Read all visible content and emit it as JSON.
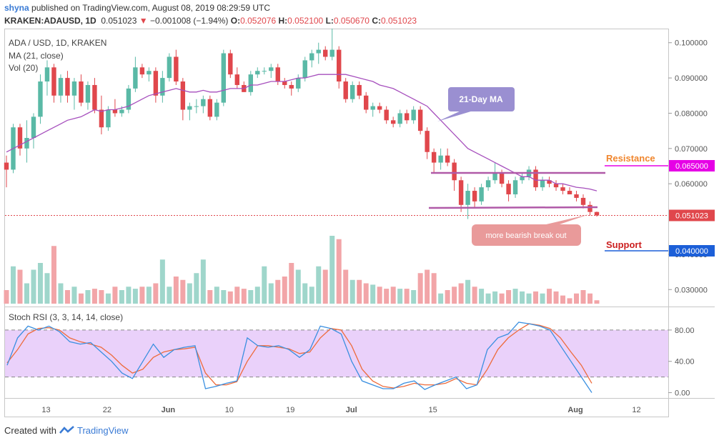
{
  "header": {
    "user": "shyna",
    "published_text": "published on TradingView.com, August 08, 2019 08:29:59 UTC",
    "symbol": "KRAKEN:ADAUSD, 1D",
    "last": "0.051023",
    "change": "−0.001008 (−1.94%)",
    "o_label": "O:",
    "o": "0.052076",
    "h_label": "H:",
    "h": "0.052100",
    "l_label": "L:",
    "l": "0.050670",
    "c_label": "C:",
    "c": "0.051023"
  },
  "legend": {
    "pair": "ADA / USD, 1D, KRAKEN",
    "ma": "MA (21, close)",
    "vol": "Vol (20)",
    "stoch": "Stoch RSI (3, 3, 14, 14, close)"
  },
  "annotations": {
    "ma_callout": "21-Day MA",
    "breakout": "more bearish break out",
    "resistance": "Resistance",
    "support": "Support"
  },
  "footer": {
    "created_with": "Created with",
    "brand": "TradingView"
  },
  "colors": {
    "up": "#5ab9a6",
    "down": "#e0474c",
    "vol_up": "#9fd6cb",
    "vol_down": "#f2a5a8",
    "ma": "#a64fbd",
    "trend": "#b05aa8",
    "resistance": "#e600e6",
    "support": "#1c5fd8",
    "callout_ma": "#9a8fd1",
    "callout_break": "#e99a9a",
    "stoch_k": "#3a8fe0",
    "stoch_d": "#ee6b3b",
    "rsi_band": "#ead1fa",
    "resistance_text": "#f0862e",
    "support_text": "#cc2020"
  },
  "chart_data": [
    {
      "type": "candlestick",
      "title": "ADA / USD, 1D, KRAKEN",
      "x_ticks": [
        "13",
        "22",
        "Jun",
        "10",
        "19",
        "Jul",
        "15",
        "Aug",
        "12"
      ],
      "y_ticks": [
        "0.100000",
        "0.090000",
        "0.080000",
        "0.070000",
        "0.060000",
        "0.040000",
        "0.030000"
      ],
      "ylim": [
        0.026,
        0.104
      ],
      "price_labels": {
        "resistance": "0.065000",
        "current": "0.051023",
        "support": "0.040000"
      },
      "levels": {
        "resistance": 0.065,
        "support": 0.04,
        "current": 0.051023
      },
      "ohlc": [
        [
          0.066,
          0.068,
          0.059,
          0.064
        ],
        [
          0.064,
          0.077,
          0.063,
          0.076
        ],
        [
          0.076,
          0.077,
          0.068,
          0.07
        ],
        [
          0.07,
          0.078,
          0.066,
          0.073
        ],
        [
          0.073,
          0.08,
          0.07,
          0.079
        ],
        [
          0.079,
          0.091,
          0.077,
          0.089
        ],
        [
          0.089,
          0.095,
          0.085,
          0.093
        ],
        [
          0.093,
          0.094,
          0.083,
          0.085
        ],
        [
          0.085,
          0.091,
          0.083,
          0.09
        ],
        [
          0.09,
          0.092,
          0.083,
          0.085
        ],
        [
          0.085,
          0.09,
          0.081,
          0.089
        ],
        [
          0.089,
          0.091,
          0.082,
          0.083
        ],
        [
          0.083,
          0.089,
          0.081,
          0.088
        ],
        [
          0.088,
          0.09,
          0.08,
          0.081
        ],
        [
          0.081,
          0.085,
          0.074,
          0.076
        ],
        [
          0.076,
          0.082,
          0.075,
          0.081
        ],
        [
          0.081,
          0.084,
          0.079,
          0.08
        ],
        [
          0.08,
          0.082,
          0.079,
          0.081
        ],
        [
          0.081,
          0.088,
          0.08,
          0.087
        ],
        [
          0.087,
          0.096,
          0.086,
          0.093
        ],
        [
          0.093,
          0.094,
          0.09,
          0.091
        ],
        [
          0.091,
          0.093,
          0.089,
          0.092
        ],
        [
          0.092,
          0.093,
          0.083,
          0.085
        ],
        [
          0.085,
          0.092,
          0.083,
          0.09
        ],
        [
          0.09,
          0.097,
          0.089,
          0.096
        ],
        [
          0.096,
          0.098,
          0.088,
          0.089
        ],
        [
          0.089,
          0.09,
          0.078,
          0.081
        ],
        [
          0.081,
          0.083,
          0.078,
          0.082
        ],
        [
          0.082,
          0.084,
          0.08,
          0.082
        ],
        [
          0.082,
          0.085,
          0.08,
          0.084
        ],
        [
          0.084,
          0.085,
          0.078,
          0.079
        ],
        [
          0.079,
          0.084,
          0.078,
          0.083
        ],
        [
          0.083,
          0.098,
          0.082,
          0.097
        ],
        [
          0.097,
          0.098,
          0.09,
          0.091
        ],
        [
          0.091,
          0.093,
          0.087,
          0.088
        ],
        [
          0.088,
          0.089,
          0.086,
          0.086
        ],
        [
          0.086,
          0.092,
          0.085,
          0.091
        ],
        [
          0.091,
          0.093,
          0.09,
          0.092
        ],
        [
          0.092,
          0.093,
          0.091,
          0.092
        ],
        [
          0.092,
          0.094,
          0.09,
          0.093
        ],
        [
          0.093,
          0.094,
          0.088,
          0.089
        ],
        [
          0.089,
          0.09,
          0.087,
          0.088
        ],
        [
          0.088,
          0.089,
          0.085,
          0.087
        ],
        [
          0.087,
          0.091,
          0.086,
          0.09
        ],
        [
          0.09,
          0.096,
          0.089,
          0.095
        ],
        [
          0.095,
          0.098,
          0.093,
          0.097
        ],
        [
          0.097,
          0.1,
          0.094,
          0.098
        ],
        [
          0.098,
          0.099,
          0.095,
          0.096
        ],
        [
          0.096,
          0.104,
          0.095,
          0.098
        ],
        [
          0.098,
          0.099,
          0.087,
          0.089
        ],
        [
          0.089,
          0.09,
          0.083,
          0.084
        ],
        [
          0.084,
          0.089,
          0.083,
          0.088
        ],
        [
          0.088,
          0.089,
          0.084,
          0.085
        ],
        [
          0.085,
          0.086,
          0.08,
          0.081
        ],
        [
          0.081,
          0.083,
          0.079,
          0.082
        ],
        [
          0.082,
          0.083,
          0.08,
          0.081
        ],
        [
          0.081,
          0.082,
          0.077,
          0.078
        ],
        [
          0.078,
          0.079,
          0.076,
          0.077
        ],
        [
          0.077,
          0.081,
          0.076,
          0.08
        ],
        [
          0.08,
          0.081,
          0.077,
          0.078
        ],
        [
          0.078,
          0.082,
          0.077,
          0.081
        ],
        [
          0.081,
          0.082,
          0.074,
          0.075
        ],
        [
          0.075,
          0.076,
          0.067,
          0.069
        ],
        [
          0.069,
          0.07,
          0.063,
          0.066
        ],
        [
          0.066,
          0.07,
          0.064,
          0.068
        ],
        [
          0.068,
          0.07,
          0.065,
          0.066
        ],
        [
          0.066,
          0.067,
          0.058,
          0.061
        ],
        [
          0.061,
          0.062,
          0.052,
          0.054
        ],
        [
          0.054,
          0.06,
          0.05,
          0.058
        ],
        [
          0.058,
          0.059,
          0.053,
          0.055
        ],
        [
          0.055,
          0.06,
          0.054,
          0.059
        ],
        [
          0.059,
          0.062,
          0.058,
          0.061
        ],
        [
          0.061,
          0.066,
          0.06,
          0.063
        ],
        [
          0.063,
          0.064,
          0.059,
          0.06
        ],
        [
          0.06,
          0.061,
          0.055,
          0.057
        ],
        [
          0.057,
          0.062,
          0.056,
          0.061
        ],
        [
          0.061,
          0.063,
          0.06,
          0.062
        ],
        [
          0.062,
          0.065,
          0.061,
          0.064
        ],
        [
          0.064,
          0.065,
          0.058,
          0.059
        ],
        [
          0.059,
          0.062,
          0.058,
          0.061
        ],
        [
          0.061,
          0.062,
          0.059,
          0.06
        ],
        [
          0.06,
          0.061,
          0.058,
          0.059
        ],
        [
          0.059,
          0.06,
          0.057,
          0.058
        ],
        [
          0.058,
          0.059,
          0.057,
          0.057
        ],
        [
          0.057,
          0.058,
          0.055,
          0.056
        ],
        [
          0.056,
          0.057,
          0.053,
          0.054
        ],
        [
          0.054,
          0.055,
          0.051,
          0.052
        ],
        [
          0.052,
          0.0521,
          0.0507,
          0.051023
        ]
      ],
      "ma21": [
        0.069,
        0.07,
        0.071,
        0.072,
        0.073,
        0.074,
        0.075,
        0.076,
        0.077,
        0.078,
        0.0785,
        0.079,
        0.08,
        0.081,
        0.0805,
        0.081,
        0.081,
        0.0815,
        0.082,
        0.083,
        0.084,
        0.085,
        0.0855,
        0.086,
        0.0865,
        0.087,
        0.0865,
        0.086,
        0.086,
        0.0865,
        0.086,
        0.086,
        0.0865,
        0.087,
        0.087,
        0.087,
        0.088,
        0.088,
        0.0885,
        0.089,
        0.089,
        0.089,
        0.0895,
        0.09,
        0.09,
        0.0905,
        0.091,
        0.091,
        0.091,
        0.091,
        0.091,
        0.0905,
        0.09,
        0.0895,
        0.089,
        0.088,
        0.0875,
        0.087,
        0.086,
        0.085,
        0.084,
        0.083,
        0.082,
        0.08,
        0.078,
        0.076,
        0.074,
        0.072,
        0.07,
        0.069,
        0.068,
        0.067,
        0.066,
        0.065,
        0.064,
        0.063,
        0.062,
        0.062,
        0.061,
        0.061,
        0.061,
        0.06,
        0.06,
        0.0595,
        0.059,
        0.0588,
        0.0585,
        0.058
      ],
      "volume_relative": [
        0.2,
        0.55,
        0.5,
        0.3,
        0.5,
        0.6,
        0.45,
        0.85,
        0.3,
        0.2,
        0.25,
        0.15,
        0.2,
        0.22,
        0.2,
        0.15,
        0.25,
        0.2,
        0.25,
        0.22,
        0.25,
        0.25,
        0.3,
        0.65,
        0.25,
        0.4,
        0.35,
        0.3,
        0.45,
        0.65,
        0.2,
        0.25,
        0.2,
        0.18,
        0.25,
        0.22,
        0.2,
        0.25,
        0.55,
        0.3,
        0.35,
        0.4,
        0.6,
        0.5,
        0.3,
        0.25,
        0.55,
        0.5,
        1.0,
        0.95,
        0.5,
        0.35,
        0.35,
        0.3,
        0.28,
        0.25,
        0.22,
        0.25,
        0.22,
        0.22,
        0.2,
        0.45,
        0.5,
        0.45,
        0.15,
        0.2,
        0.25,
        0.3,
        0.35,
        0.25,
        0.22,
        0.15,
        0.18,
        0.15,
        0.2,
        0.22,
        0.18,
        0.15,
        0.18,
        0.15,
        0.22,
        0.18,
        0.12,
        0.08,
        0.15,
        0.2,
        0.15,
        0.05
      ]
    },
    {
      "type": "line",
      "title": "Stoch RSI (3, 3, 14, 14, close)",
      "y_ticks": [
        "80.00",
        "40.00",
        "0.00"
      ],
      "ylim": [
        -5,
        100
      ],
      "band": [
        20,
        80
      ],
      "series": [
        {
          "name": "K",
          "values": [
            35,
            70,
            85,
            80,
            85,
            78,
            65,
            62,
            64,
            52,
            40,
            25,
            18,
            40,
            62,
            45,
            55,
            58,
            60,
            5,
            8,
            12,
            15,
            70,
            60,
            58,
            60,
            55,
            45,
            55,
            85,
            82,
            75,
            40,
            15,
            10,
            5,
            5,
            12,
            15,
            4,
            10,
            15,
            20,
            5,
            10,
            55,
            70,
            75,
            90,
            88,
            85,
            80,
            60,
            40,
            20,
            0
          ]
        },
        {
          "name": "D",
          "values": [
            38,
            55,
            75,
            82,
            83,
            80,
            70,
            65,
            62,
            58,
            48,
            35,
            25,
            30,
            45,
            52,
            55,
            56,
            58,
            25,
            10,
            10,
            14,
            40,
            60,
            60,
            58,
            56,
            50,
            52,
            70,
            82,
            80,
            60,
            30,
            15,
            8,
            6,
            8,
            12,
            10,
            10,
            12,
            18,
            12,
            10,
            30,
            55,
            70,
            80,
            88,
            86,
            82,
            70,
            52,
            35,
            12
          ]
        }
      ]
    }
  ]
}
